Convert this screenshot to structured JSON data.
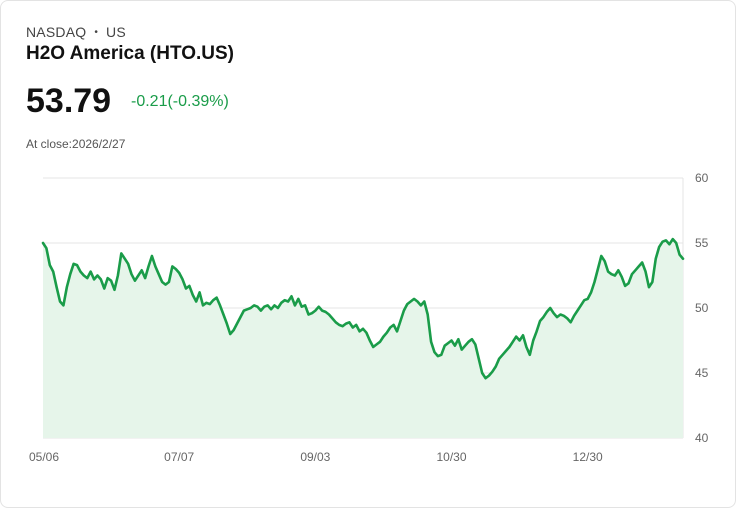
{
  "header": {
    "exchange": "NASDAQ",
    "separator": "•",
    "region": "US",
    "company": "H2O America (HTO.US)"
  },
  "quote": {
    "price": "53.79",
    "change": "-0.21(-0.39%)",
    "close_label": "At close:2026/2/27"
  },
  "colors": {
    "line": "#1a9c49",
    "fill": "#e6f5ea",
    "grid": "#e4e4e4"
  },
  "chart_data": {
    "type": "area",
    "title": "",
    "xlabel": "",
    "ylabel": "",
    "ylim": [
      40,
      60
    ],
    "yticks": [
      "60",
      "55",
      "50",
      "45",
      "40"
    ],
    "xticks": [
      {
        "index": 0,
        "label": "05/06"
      },
      {
        "index": 40,
        "label": "07/07"
      },
      {
        "index": 80,
        "label": "09/03"
      },
      {
        "index": 120,
        "label": "10/30"
      },
      {
        "index": 160,
        "label": "12/30"
      }
    ],
    "series": [
      {
        "name": "HTO.US",
        "values": [
          55.0,
          54.6,
          53.3,
          52.8,
          51.6,
          50.5,
          50.2,
          51.6,
          52.6,
          53.4,
          53.3,
          52.8,
          52.5,
          52.3,
          52.8,
          52.2,
          52.5,
          52.2,
          51.5,
          52.3,
          52.1,
          51.4,
          52.5,
          54.2,
          53.8,
          53.4,
          52.6,
          52.1,
          52.5,
          52.9,
          52.3,
          53.2,
          54.0,
          53.2,
          52.6,
          52.0,
          51.8,
          52.0,
          53.2,
          53.0,
          52.7,
          52.2,
          51.5,
          51.7,
          51.0,
          50.5,
          51.2,
          50.2,
          50.4,
          50.3,
          50.6,
          50.8,
          50.2,
          49.5,
          48.8,
          48.0,
          48.3,
          48.8,
          49.3,
          49.8,
          49.9,
          50.0,
          50.2,
          50.1,
          49.8,
          50.1,
          50.2,
          49.9,
          50.2,
          50.0,
          50.4,
          50.6,
          50.5,
          50.9,
          50.2,
          50.7,
          50.1,
          50.2,
          49.5,
          49.6,
          49.8,
          50.1,
          49.8,
          49.7,
          49.5,
          49.2,
          48.9,
          48.7,
          48.6,
          48.8,
          48.9,
          48.5,
          48.7,
          48.2,
          48.4,
          48.1,
          47.5,
          47.0,
          47.2,
          47.4,
          47.8,
          48.1,
          48.5,
          48.7,
          48.2,
          49.0,
          49.8,
          50.3,
          50.5,
          50.7,
          50.5,
          50.2,
          50.5,
          49.5,
          47.4,
          46.6,
          46.3,
          46.4,
          47.1,
          47.3,
          47.5,
          47.1,
          47.6,
          46.8,
          47.1,
          47.4,
          47.6,
          47.2,
          46.1,
          45.0,
          44.6,
          44.8,
          45.1,
          45.5,
          46.1,
          46.4,
          46.7,
          47.0,
          47.4,
          47.8,
          47.5,
          47.9,
          47.0,
          46.4,
          47.5,
          48.2,
          49.0,
          49.3,
          49.7,
          50.0,
          49.6,
          49.3,
          49.5,
          49.4,
          49.2,
          48.9,
          49.4,
          49.8,
          50.2,
          50.6,
          50.7,
          51.2,
          52.0,
          53.0,
          54.0,
          53.6,
          52.8,
          52.6,
          52.5,
          52.9,
          52.4,
          51.7,
          51.9,
          52.6,
          52.9,
          53.2,
          53.5,
          52.8,
          51.6,
          52.0,
          53.8,
          54.7,
          55.1,
          55.2,
          54.9,
          55.3,
          55.0,
          54.1,
          53.79
        ]
      }
    ]
  }
}
